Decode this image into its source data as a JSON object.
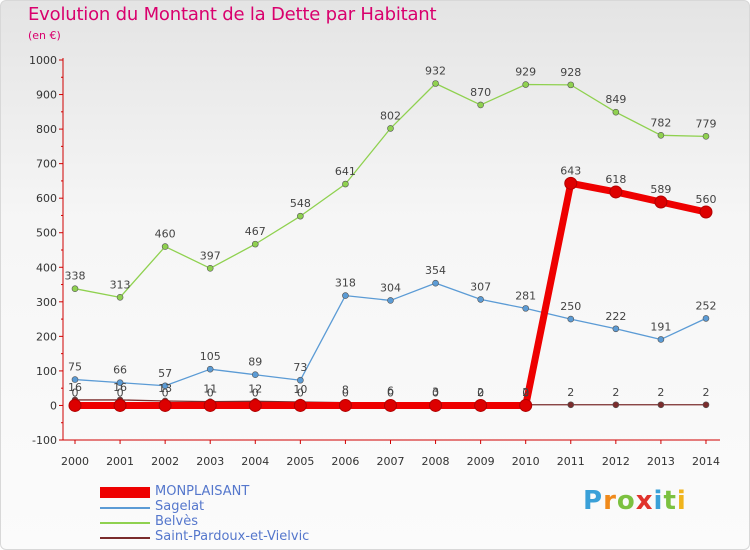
{
  "title": "Evolution du Montant de la Dette par Habitant",
  "unit": "(en €)",
  "logo": {
    "text": "Proxiti",
    "letters": [
      "P",
      "r",
      "o",
      "x",
      "i",
      "t",
      "i"
    ],
    "colors": [
      "#3aa0d8",
      "#f08a1c",
      "#7cc140",
      "#e0322b",
      "#3aa0d8",
      "#7cc140",
      "#f0b41c"
    ]
  },
  "chart_data": {
    "type": "line",
    "x": [
      "2000",
      "2001",
      "2002",
      "2003",
      "2004",
      "2005",
      "2006",
      "2007",
      "2008",
      "2009",
      "2010",
      "2011",
      "2012",
      "2013",
      "2014"
    ],
    "ylim": [
      -100,
      1000
    ],
    "yticks": [
      "-100",
      "0",
      "100",
      "200",
      "300",
      "400",
      "500",
      "600",
      "700",
      "800",
      "900",
      "1000"
    ],
    "grid": false,
    "legend_position": "bottom-left",
    "series": [
      {
        "name": "MONPLAISANT",
        "color": "#ee0000",
        "values": [
          0,
          0,
          0,
          0,
          0,
          0,
          0,
          0,
          0,
          0,
          0,
          643,
          618,
          589,
          560
        ],
        "labels": [
          "0",
          "0",
          "0",
          "0",
          "0",
          "0",
          "0",
          "0",
          "0",
          "0",
          "0",
          "643",
          "618",
          "589",
          "560"
        ]
      },
      {
        "name": "Sagelat",
        "color": "#5b9bd5",
        "values": [
          75,
          66,
          57,
          105,
          89,
          73,
          318,
          304,
          354,
          307,
          281,
          250,
          222,
          191,
          252
        ],
        "labels": [
          "75",
          "66",
          "57",
          "105",
          "89",
          "73",
          "318",
          "304",
          "354",
          "307",
          "281",
          "250",
          "222",
          "191",
          "252"
        ]
      },
      {
        "name": "Belvès",
        "color": "#8fd14f",
        "values": [
          338,
          313,
          460,
          397,
          467,
          548,
          641,
          802,
          932,
          870,
          929,
          928,
          849,
          782,
          779
        ],
        "labels": [
          "338",
          "313",
          "460",
          "397",
          "467",
          "548",
          "641",
          "802",
          "932",
          "870",
          "929",
          "928",
          "849",
          "782",
          "779"
        ]
      },
      {
        "name": "Saint-Pardoux-et-Vielvic",
        "color": "#7b2c2c",
        "values": [
          16,
          16,
          13,
          11,
          12,
          10,
          8,
          6,
          3,
          2,
          2,
          2,
          2,
          2,
          2
        ],
        "labels": [
          "16",
          "16",
          "13",
          "11",
          "12",
          "10",
          "8",
          "6",
          "3",
          "2",
          "2",
          "2",
          "2",
          "2",
          "2"
        ]
      }
    ]
  }
}
